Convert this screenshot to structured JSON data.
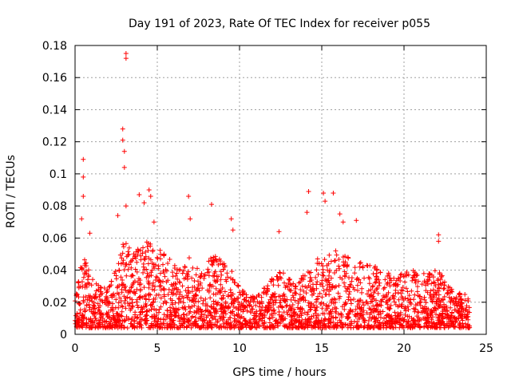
{
  "chart_data": {
    "type": "scatter",
    "title": "Day 191 of 2023, Rate Of TEC Index for receiver p055",
    "xlabel": "GPS time / hours",
    "ylabel": "ROTI / TECUs",
    "xlim": [
      0,
      25
    ],
    "ylim": [
      0,
      0.18
    ],
    "xticks": [
      0,
      5,
      10,
      15,
      20,
      25
    ],
    "xtick_labels": [
      "0",
      "5",
      "10",
      "15",
      "20",
      "25"
    ],
    "yticks": [
      0,
      0.02,
      0.04,
      0.06,
      0.08,
      0.1,
      0.12,
      0.14,
      0.16,
      0.18
    ],
    "ytick_labels": [
      "0",
      "0.02",
      "0.04",
      "0.06",
      "0.08",
      "0.1",
      "0.12",
      "0.14",
      "0.16",
      "0.18"
    ],
    "grid": true,
    "marker": "+",
    "marker_color": "#ff0000",
    "x_range_of_data": [
      0,
      24
    ],
    "envelope": {
      "x": [
        0,
        0.5,
        1,
        1.5,
        2,
        2.5,
        3,
        3.5,
        4,
        4.5,
        5,
        5.5,
        6,
        6.5,
        7,
        7.5,
        8,
        8.5,
        9,
        9.5,
        10,
        10.5,
        11,
        11.5,
        12,
        12.5,
        13,
        13.5,
        14,
        14.5,
        15,
        15.5,
        16,
        16.5,
        17,
        17.5,
        18,
        18.5,
        19,
        19.5,
        20,
        20.5,
        21,
        21.5,
        22,
        22.5,
        23,
        23.5,
        24
      ],
      "typical_max": [
        0.025,
        0.05,
        0.035,
        0.03,
        0.03,
        0.045,
        0.06,
        0.05,
        0.055,
        0.06,
        0.055,
        0.05,
        0.045,
        0.04,
        0.05,
        0.04,
        0.045,
        0.05,
        0.045,
        0.04,
        0.03,
        0.025,
        0.025,
        0.03,
        0.035,
        0.04,
        0.035,
        0.03,
        0.04,
        0.045,
        0.05,
        0.055,
        0.055,
        0.05,
        0.045,
        0.045,
        0.045,
        0.04,
        0.04,
        0.035,
        0.04,
        0.04,
        0.04,
        0.04,
        0.04,
        0.035,
        0.03,
        0.025,
        0.025
      ]
    },
    "notable_points": [
      {
        "x": 0.5,
        "y": 0.109
      },
      {
        "x": 0.5,
        "y": 0.098
      },
      {
        "x": 0.5,
        "y": 0.086
      },
      {
        "x": 0.4,
        "y": 0.072
      },
      {
        "x": 0.9,
        "y": 0.063
      },
      {
        "x": 2.6,
        "y": 0.074
      },
      {
        "x": 2.9,
        "y": 0.128
      },
      {
        "x": 2.9,
        "y": 0.121
      },
      {
        "x": 3.0,
        "y": 0.114
      },
      {
        "x": 3.0,
        "y": 0.104
      },
      {
        "x": 3.1,
        "y": 0.175
      },
      {
        "x": 3.1,
        "y": 0.172
      },
      {
        "x": 3.1,
        "y": 0.08
      },
      {
        "x": 3.9,
        "y": 0.087
      },
      {
        "x": 4.2,
        "y": 0.082
      },
      {
        "x": 4.5,
        "y": 0.09
      },
      {
        "x": 4.6,
        "y": 0.086
      },
      {
        "x": 4.8,
        "y": 0.07
      },
      {
        "x": 6.9,
        "y": 0.086
      },
      {
        "x": 7.0,
        "y": 0.072
      },
      {
        "x": 8.3,
        "y": 0.081
      },
      {
        "x": 9.5,
        "y": 0.072
      },
      {
        "x": 9.6,
        "y": 0.065
      },
      {
        "x": 12.4,
        "y": 0.064
      },
      {
        "x": 14.2,
        "y": 0.089
      },
      {
        "x": 14.1,
        "y": 0.076
      },
      {
        "x": 15.1,
        "y": 0.088
      },
      {
        "x": 15.2,
        "y": 0.083
      },
      {
        "x": 15.7,
        "y": 0.088
      },
      {
        "x": 16.1,
        "y": 0.075
      },
      {
        "x": 16.3,
        "y": 0.07
      },
      {
        "x": 17.1,
        "y": 0.071
      },
      {
        "x": 22.1,
        "y": 0.062
      },
      {
        "x": 22.1,
        "y": 0.058
      }
    ]
  }
}
